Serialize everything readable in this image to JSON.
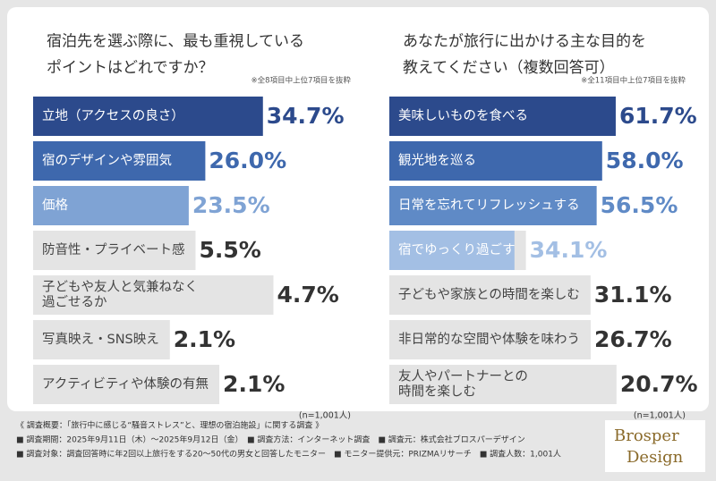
{
  "chart_data": [
    {
      "type": "bar",
      "title": "宿泊先を選ぶ際に、最も重視している\nポイントはどれですか？",
      "note": "※全8項目中上位7項目を抜粋",
      "sample": "(n=1,001人)",
      "categories": [
        "立地（アクセスの良さ）",
        "宿のデザインや雰囲気",
        "価格",
        "防音性・プライベート感",
        "子どもや友人と気兼ねなく\n過ごせるか",
        "写真映え・SNS映え",
        "アクティビティや体験の有無"
      ],
      "values": [
        34.7,
        26.0,
        23.5,
        5.5,
        4.7,
        2.1,
        2.1
      ],
      "value_labels": [
        "34.7%",
        "26.0%",
        "23.5%",
        "5.5%",
        "4.7%",
        "2.1%",
        "2.1%"
      ],
      "colors": [
        "#2c4a8c",
        "#3e68ad",
        "#7fa3d4",
        "#e4e4e4",
        "#e4e4e4",
        "#e4e4e4",
        "#e4e4e4"
      ],
      "text_colors": [
        "#ffffff",
        "#ffffff",
        "#ffffff",
        "#444444",
        "#444444",
        "#444444",
        "#444444"
      ],
      "value_label_colors": [
        "#2c4a8c",
        "#3e68ad",
        "#7fa3d4",
        "#333333",
        "#333333",
        "#333333",
        "#333333"
      ]
    },
    {
      "type": "bar",
      "title": "あなたが旅行に出かける主な目的を\n教えてください（複数回答可）",
      "note": "※全11項目中上位7項目を抜粋",
      "sample": "(n=1,001人)",
      "categories": [
        "美味しいものを食べる",
        "観光地を巡る",
        "日常を忘れてリフレッシュする",
        "宿でゆっくり過ごす",
        "子どもや家族との時間を楽しむ",
        "非日常的な空間や体験を味わう",
        "友人やパートナーとの\n時間を楽しむ"
      ],
      "values": [
        61.7,
        58.0,
        56.5,
        34.1,
        31.1,
        26.7,
        20.7
      ],
      "value_labels": [
        "61.7%",
        "58.0%",
        "56.5%",
        "34.1%",
        "31.1%",
        "26.7%",
        "20.7%"
      ],
      "colors": [
        "#2c4a8c",
        "#3e68ad",
        "#5f8ac6",
        "#a3bfe4",
        "#e4e4e4",
        "#e4e4e4",
        "#e4e4e4"
      ],
      "text_colors": [
        "#ffffff",
        "#ffffff",
        "#ffffff",
        "#ffffff",
        "#444444",
        "#444444",
        "#444444"
      ],
      "value_label_colors": [
        "#2c4a8c",
        "#3e68ad",
        "#5f8ac6",
        "#a3bfe4",
        "#333333",
        "#333333",
        "#333333"
      ]
    }
  ],
  "footer": {
    "lines": [
      "《 調査概要：「旅行中に感じる“騒音ストレス”と、理想の宿泊施設」に関する調査 》",
      "■ 調査期間：2025年9月11日（木）～2025年9月12日（金）　■ 調査方法：インターネット調査　■ 調査元：株式会社ブロスパーデザイン",
      "■ 調査対象：調査回答時に年2回以上旅行をする20～50代の男女と回答したモニター　■ モニター提供元：PRIZMAリサーチ　■ 調査人数：1,001人"
    ],
    "logo": [
      "Brosper",
      "Design"
    ]
  }
}
